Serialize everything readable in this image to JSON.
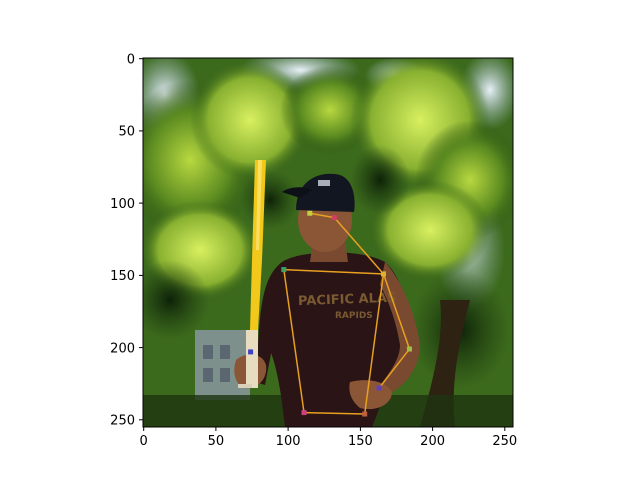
{
  "figure": {
    "x_ticks": [
      "0",
      "50",
      "100",
      "150",
      "200",
      "250"
    ],
    "y_ticks": [
      "0",
      "50",
      "100",
      "150",
      "200",
      "250"
    ],
    "image_size": [
      256,
      256
    ]
  },
  "scene": {
    "description_icons": [
      "tree-foliage",
      "building",
      "person",
      "cap",
      "baseball-bat"
    ],
    "shirt_text": [
      "PACIFIC ALAS",
      "RAPIDS"
    ]
  },
  "pose": {
    "line_color": "#e8a020",
    "keypoints": [
      {
        "name": "head-top",
        "x": 115,
        "y": 107,
        "color": "#c0d040"
      },
      {
        "name": "neck",
        "x": 132,
        "y": 110,
        "color": "#d04060"
      },
      {
        "name": "right-shoulder",
        "x": 97,
        "y": 146,
        "color": "#40a060"
      },
      {
        "name": "left-shoulder",
        "x": 166,
        "y": 149,
        "color": "#e0b030"
      },
      {
        "name": "left-elbow",
        "x": 184,
        "y": 201,
        "color": "#a0c040"
      },
      {
        "name": "left-wrist",
        "x": 163,
        "y": 228,
        "color": "#6040c0"
      },
      {
        "name": "right-wrist",
        "x": 74,
        "y": 203,
        "color": "#4040c0"
      },
      {
        "name": "right-hip",
        "x": 111,
        "y": 245,
        "color": "#d04080"
      },
      {
        "name": "left-hip",
        "x": 153,
        "y": 246,
        "color": "#c06040"
      }
    ],
    "edges": [
      [
        "head-top",
        "neck"
      ],
      [
        "neck",
        "left-shoulder"
      ],
      [
        "right-shoulder",
        "left-shoulder"
      ],
      [
        "right-shoulder",
        "right-hip"
      ],
      [
        "left-shoulder",
        "left-hip"
      ],
      [
        "right-hip",
        "left-hip"
      ],
      [
        "left-shoulder",
        "left-elbow"
      ],
      [
        "left-elbow",
        "left-wrist"
      ]
    ]
  }
}
